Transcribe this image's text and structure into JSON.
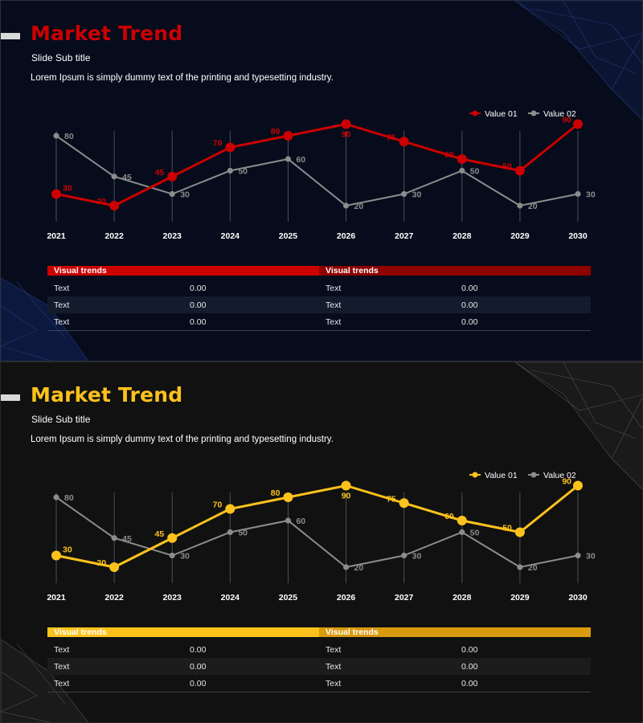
{
  "slides": [
    {
      "theme": "red",
      "title": "Market Trend",
      "subtitle": "Slide Sub title",
      "description": "Lorem Ipsum is simply dummy text of the printing and typesetting industry.",
      "colors": {
        "accent": "#cc0000",
        "accent2": "#8f0000",
        "series2": "#8c8c8c",
        "background": "#060c1c"
      },
      "table": {
        "headers": [
          "Visual trends",
          "Visual trends"
        ],
        "rows": [
          [
            "Text",
            "0.00",
            "Text",
            "0.00"
          ],
          [
            "Text",
            "0.00",
            "Text",
            "0.00"
          ],
          [
            "Text",
            "0.00",
            "Text",
            "0.00"
          ]
        ]
      }
    },
    {
      "theme": "yellow",
      "title": "Market Trend",
      "subtitle": "Slide Sub title",
      "description": "Lorem Ipsum is simply dummy text of the printing and typesetting industry.",
      "colors": {
        "accent": "#ffc21c",
        "accent2": "#d99a0d",
        "series2": "#8c8c8c",
        "background": "#111111"
      },
      "table": {
        "headers": [
          "Visual trends",
          "Visual trends"
        ],
        "rows": [
          [
            "Text",
            "0.00",
            "Text",
            "0.00"
          ],
          [
            "Text",
            "0.00",
            "Text",
            "0.00"
          ],
          [
            "Text",
            "0.00",
            "Text",
            "0.00"
          ]
        ]
      }
    }
  ],
  "chart_data": {
    "type": "line",
    "categories": [
      "2021",
      "2022",
      "2023",
      "2024",
      "2025",
      "2026",
      "2027",
      "2028",
      "2029",
      "2030"
    ],
    "series": [
      {
        "name": "Value 01",
        "values": [
          30,
          20,
          45,
          70,
          80,
          90,
          75,
          60,
          50,
          90
        ]
      },
      {
        "name": "Value 02",
        "values": [
          80,
          45,
          30,
          50,
          60,
          20,
          30,
          50,
          20,
          30
        ]
      }
    ],
    "ylim": [
      0,
      100
    ],
    "legend": "top-right",
    "grid": "vertical"
  }
}
